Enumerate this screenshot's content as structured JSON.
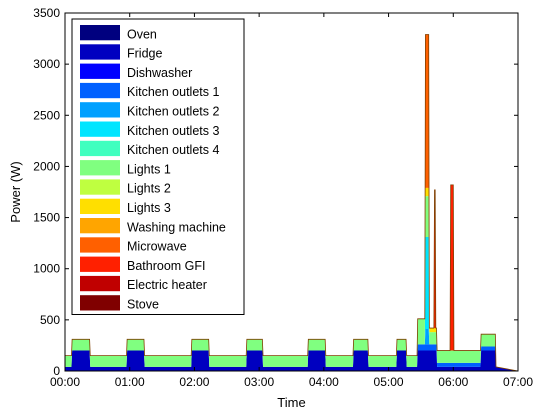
{
  "chart_data": {
    "type": "area",
    "stacked": true,
    "xlabel": "Time",
    "ylabel": "Power (W)",
    "xlim": [
      0,
      7
    ],
    "ylim": [
      0,
      3500
    ],
    "x_ticks": [
      0,
      1,
      2,
      3,
      4,
      5,
      6,
      7
    ],
    "x_tick_labels": [
      "00:00",
      "01:00",
      "02:00",
      "03:00",
      "04:00",
      "05:00",
      "06:00",
      "07:00"
    ],
    "y_ticks": [
      0,
      500,
      1000,
      1500,
      2000,
      2500,
      3000,
      3500
    ],
    "y_tick_labels": [
      "0",
      "500",
      "1000",
      "1500",
      "2000",
      "2500",
      "3000",
      "3500"
    ],
    "legend_position": "top-left",
    "grid": false,
    "x_unit": "hours",
    "x": [
      0,
      0.1,
      0.11,
      0.38,
      0.39,
      0.95,
      0.96,
      1.22,
      1.23,
      1.95,
      1.96,
      2.22,
      2.23,
      2.8,
      2.81,
      3.05,
      3.06,
      3.75,
      3.76,
      4.02,
      4.03,
      4.45,
      4.46,
      4.68,
      4.69,
      5.12,
      5.13,
      5.27,
      5.28,
      5.44,
      5.45,
      5.56,
      5.57,
      5.62,
      5.63,
      5.7,
      5.71,
      5.72,
      5.73,
      5.74,
      5.75,
      5.95,
      5.96,
      6.0,
      6.01,
      6.3,
      6.31,
      6.42,
      6.43,
      6.65,
      6.66,
      7.0
    ],
    "series": [
      {
        "name": "Oven",
        "color": "#00007f",
        "values": [
          0,
          0,
          0,
          0,
          0,
          0,
          0,
          0,
          0,
          0,
          0,
          0,
          0,
          0,
          0,
          0,
          0,
          0,
          0,
          0,
          0,
          0,
          0,
          0,
          0,
          0,
          0,
          0,
          0,
          0,
          0,
          0,
          0,
          0,
          0,
          0,
          0,
          0,
          0,
          0,
          0,
          0,
          0,
          0,
          0,
          0,
          0,
          0,
          0,
          0,
          0,
          0
        ]
      },
      {
        "name": "Fridge",
        "color": "#0000c0",
        "values": [
          40,
          40,
          200,
          200,
          40,
          40,
          200,
          200,
          40,
          40,
          200,
          200,
          40,
          40,
          200,
          200,
          40,
          40,
          200,
          200,
          40,
          40,
          200,
          200,
          40,
          40,
          200,
          200,
          40,
          40,
          200,
          200,
          200,
          200,
          200,
          200,
          200,
          200,
          200,
          200,
          40,
          40,
          40,
          40,
          40,
          40,
          40,
          40,
          200,
          200,
          40,
          0
        ]
      },
      {
        "name": "Dishwasher",
        "color": "#0000ff",
        "values": [
          0,
          0,
          0,
          0,
          0,
          0,
          0,
          0,
          0,
          0,
          0,
          0,
          0,
          0,
          0,
          0,
          0,
          0,
          0,
          0,
          0,
          0,
          0,
          0,
          0,
          0,
          0,
          0,
          0,
          0,
          0,
          0,
          0,
          0,
          0,
          0,
          0,
          0,
          0,
          0,
          0,
          0,
          0,
          0,
          0,
          0,
          0,
          0,
          0,
          0,
          0,
          0
        ]
      },
      {
        "name": "Kitchen outlets 1",
        "color": "#0060ff",
        "values": [
          0,
          0,
          0,
          0,
          0,
          0,
          0,
          0,
          0,
          0,
          0,
          0,
          0,
          0,
          0,
          0,
          0,
          0,
          0,
          0,
          0,
          0,
          0,
          0,
          0,
          0,
          0,
          0,
          0,
          0,
          60,
          60,
          60,
          60,
          60,
          60,
          60,
          60,
          60,
          60,
          40,
          40,
          40,
          40,
          40,
          40,
          40,
          40,
          40,
          40,
          0,
          0
        ]
      },
      {
        "name": "Kitchen outlets 2",
        "color": "#00a0ff",
        "values": [
          0,
          0,
          0,
          0,
          0,
          0,
          0,
          0,
          0,
          0,
          0,
          0,
          0,
          0,
          0,
          0,
          0,
          0,
          0,
          0,
          0,
          0,
          0,
          0,
          0,
          0,
          0,
          0,
          0,
          0,
          0,
          0,
          150,
          150,
          0,
          0,
          0,
          0,
          0,
          0,
          0,
          0,
          0,
          0,
          0,
          0,
          0,
          0,
          0,
          0,
          0,
          0
        ]
      },
      {
        "name": "Kitchen outlets 3",
        "color": "#00e5ff",
        "values": [
          0,
          0,
          0,
          0,
          0,
          0,
          0,
          0,
          0,
          0,
          0,
          0,
          0,
          0,
          0,
          0,
          0,
          0,
          0,
          0,
          0,
          0,
          0,
          0,
          0,
          0,
          0,
          0,
          0,
          0,
          0,
          0,
          900,
          900,
          0,
          0,
          0,
          0,
          0,
          0,
          0,
          0,
          0,
          0,
          0,
          0,
          0,
          0,
          0,
          0,
          0,
          0
        ]
      },
      {
        "name": "Kitchen outlets 4",
        "color": "#40ffbf",
        "values": [
          0,
          0,
          0,
          0,
          0,
          0,
          0,
          0,
          0,
          0,
          0,
          0,
          0,
          0,
          0,
          0,
          0,
          0,
          0,
          0,
          0,
          0,
          0,
          0,
          0,
          0,
          0,
          0,
          0,
          0,
          0,
          0,
          0,
          0,
          0,
          0,
          0,
          0,
          0,
          0,
          0,
          0,
          0,
          0,
          0,
          0,
          0,
          0,
          0,
          0,
          0,
          0
        ]
      },
      {
        "name": "Lights 1",
        "color": "#80ff80",
        "values": [
          110,
          110,
          110,
          110,
          110,
          110,
          110,
          110,
          110,
          110,
          110,
          110,
          110,
          110,
          110,
          110,
          110,
          110,
          110,
          110,
          110,
          110,
          110,
          110,
          110,
          110,
          110,
          110,
          110,
          110,
          250,
          250,
          400,
          400,
          120,
          120,
          120,
          120,
          120,
          120,
          120,
          120,
          120,
          120,
          120,
          120,
          120,
          120,
          120,
          120,
          0,
          0
        ]
      },
      {
        "name": "Lights 2",
        "color": "#bfff40",
        "values": [
          0,
          0,
          0,
          0,
          0,
          0,
          0,
          0,
          0,
          0,
          0,
          0,
          0,
          0,
          0,
          0,
          0,
          0,
          0,
          0,
          0,
          0,
          0,
          0,
          0,
          0,
          0,
          0,
          0,
          0,
          0,
          0,
          0,
          0,
          0,
          0,
          0,
          0,
          0,
          0,
          0,
          0,
          0,
          0,
          0,
          0,
          0,
          0,
          0,
          0,
          0,
          0
        ]
      },
      {
        "name": "Lights 3",
        "color": "#ffdf00",
        "values": [
          0,
          0,
          0,
          0,
          0,
          0,
          0,
          0,
          0,
          0,
          0,
          0,
          0,
          0,
          0,
          0,
          0,
          0,
          0,
          0,
          0,
          0,
          0,
          0,
          0,
          0,
          0,
          0,
          0,
          0,
          0,
          0,
          80,
          80,
          40,
          40,
          40,
          40,
          40,
          40,
          0,
          0,
          0,
          0,
          0,
          0,
          0,
          0,
          0,
          0,
          0,
          0
        ]
      },
      {
        "name": "Washing machine",
        "color": "#ffa500",
        "values": [
          0,
          0,
          0,
          0,
          0,
          0,
          0,
          0,
          0,
          0,
          0,
          0,
          0,
          0,
          0,
          0,
          0,
          0,
          0,
          0,
          0,
          0,
          0,
          0,
          0,
          0,
          0,
          0,
          0,
          0,
          0,
          0,
          0,
          0,
          0,
          0,
          0,
          0,
          0,
          0,
          0,
          0,
          0,
          0,
          0,
          0,
          0,
          0,
          0,
          0,
          0,
          0
        ]
      },
      {
        "name": "Microwave",
        "color": "#ff6000",
        "values": [
          0,
          0,
          0,
          0,
          0,
          0,
          0,
          0,
          0,
          0,
          0,
          0,
          0,
          0,
          0,
          0,
          0,
          0,
          0,
          0,
          0,
          0,
          0,
          0,
          0,
          0,
          0,
          0,
          0,
          0,
          0,
          0,
          1500,
          1500,
          0,
          0,
          0,
          0,
          0,
          0,
          0,
          0,
          0,
          0,
          0,
          0,
          0,
          0,
          0,
          0,
          0,
          0
        ]
      },
      {
        "name": "Bathroom GFI",
        "color": "#ff2000",
        "values": [
          0,
          0,
          0,
          0,
          0,
          0,
          0,
          0,
          0,
          0,
          0,
          0,
          0,
          0,
          0,
          0,
          0,
          0,
          0,
          0,
          0,
          0,
          0,
          0,
          0,
          0,
          0,
          0,
          0,
          0,
          0,
          0,
          0,
          0,
          0,
          0,
          1350,
          1350,
          0,
          0,
          0,
          0,
          1620,
          1620,
          0,
          0,
          0,
          0,
          0,
          0,
          0,
          0
        ]
      },
      {
        "name": "Electric heater",
        "color": "#c00000",
        "values": [
          0,
          0,
          0,
          0,
          0,
          0,
          0,
          0,
          0,
          0,
          0,
          0,
          0,
          0,
          0,
          0,
          0,
          0,
          0,
          0,
          0,
          0,
          0,
          0,
          0,
          0,
          0,
          0,
          0,
          0,
          0,
          0,
          0,
          0,
          0,
          0,
          0,
          0,
          0,
          0,
          0,
          0,
          0,
          0,
          0,
          0,
          0,
          0,
          0,
          0,
          0,
          0
        ]
      },
      {
        "name": "Stove",
        "color": "#800000",
        "values": [
          0,
          0,
          0,
          0,
          0,
          0,
          0,
          0,
          0,
          0,
          0,
          0,
          0,
          0,
          0,
          0,
          0,
          0,
          0,
          0,
          0,
          0,
          0,
          0,
          0,
          0,
          0,
          0,
          0,
          0,
          0,
          0,
          0,
          0,
          0,
          0,
          0,
          0,
          0,
          0,
          0,
          0,
          0,
          0,
          0,
          0,
          0,
          0,
          0,
          0,
          0,
          0
        ]
      }
    ]
  }
}
